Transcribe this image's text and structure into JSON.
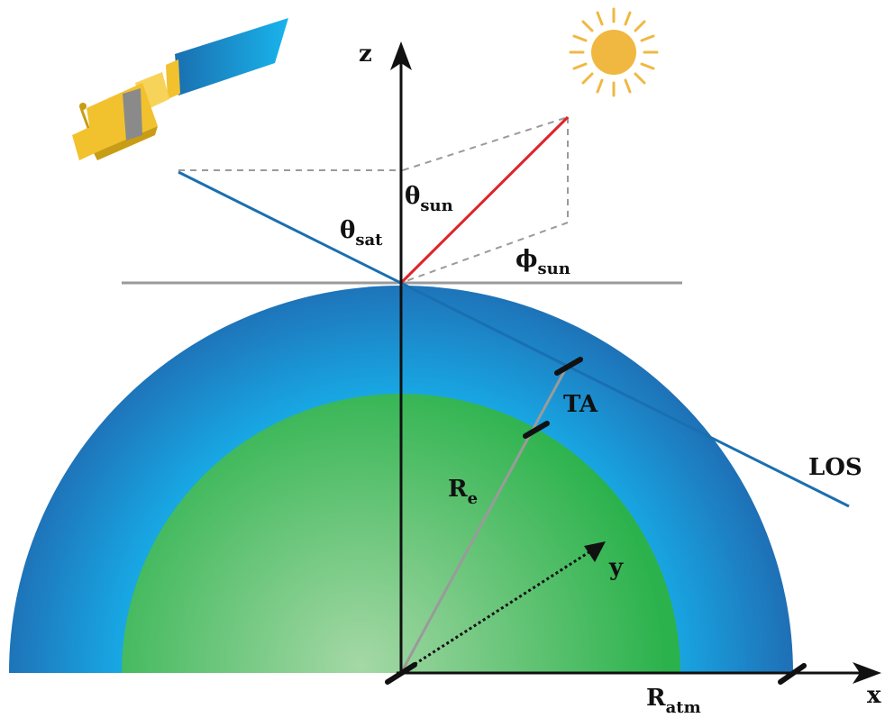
{
  "labels": {
    "z_axis": "z",
    "x_axis": "x",
    "y_axis": "y",
    "theta_sun": {
      "base": "θ",
      "sub": "sun"
    },
    "theta_sat": {
      "base": "θ",
      "sub": "sat"
    },
    "phi_sun": {
      "base": "ϕ",
      "sub": "sun"
    },
    "tangent_altitude": "TA",
    "line_of_sight": "LOS",
    "earth_radius": {
      "base": "R",
      "sub": "e"
    },
    "atmosphere_radius": {
      "base": "R",
      "sub": "atm"
    }
  },
  "colors": {
    "atmosphere_outer": "#1f6fb5",
    "atmosphere_inner": "#18a7e3",
    "earth_outer": "#2bb24c",
    "earth_center": "#a5d8a6",
    "sun": "#f0b840",
    "sun_ray": "#e0232a",
    "los_line": "#1a6fb0",
    "horizon": "#9a9a9a",
    "guide_dashed": "#9a9a9a",
    "axes": "#222222",
    "satellite_body": "#f2c12e",
    "satellite_panel": "#1a8fd8"
  },
  "icons": {
    "satellite": "satellite-icon",
    "sun": "sun-icon"
  }
}
